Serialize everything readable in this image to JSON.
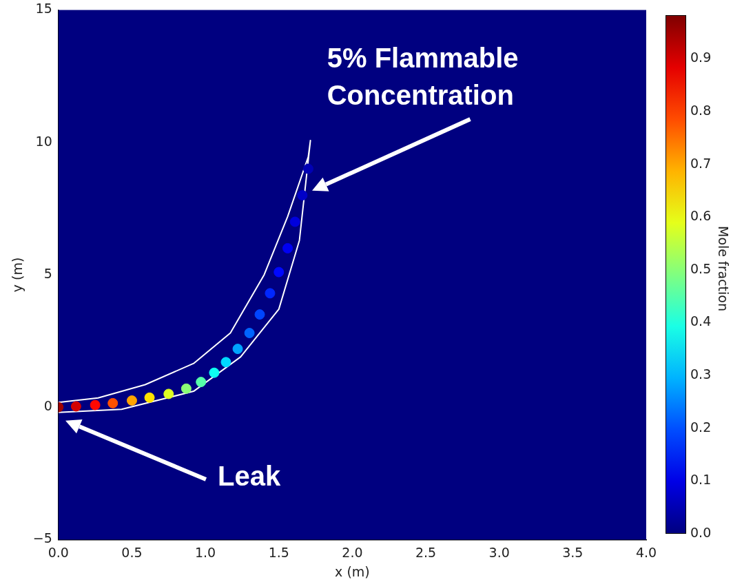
{
  "chart_data": {
    "type": "scatter",
    "xlabel": "x (m)",
    "ylabel": "y (m)",
    "clabel": "Mole fraction",
    "xlim": [
      0,
      4
    ],
    "xticks": [
      {
        "value": 0,
        "label": "0.0"
      },
      0.5,
      {
        "value": 1,
        "label": "1.0"
      },
      1.5,
      {
        "value": 2,
        "label": "2.0"
      },
      2.5,
      {
        "value": 3,
        "label": "3.0"
      },
      3.5,
      {
        "value": 4,
        "label": "4.0"
      }
    ],
    "ylim": [
      -5,
      15
    ],
    "yticks": [
      {
        "value": -5,
        "label": "−5"
      },
      0,
      5,
      10,
      15
    ],
    "clim": [
      0,
      0.98
    ],
    "cticks": [
      {
        "value": 0,
        "label": "0.0"
      },
      0.1,
      0.2,
      0.3,
      0.4,
      0.5,
      0.6,
      0.7,
      0.8,
      0.9
    ],
    "series": [
      {
        "x": [
          0,
          0.12,
          0.25,
          0.37,
          0.5,
          0.62,
          0.75,
          0.87,
          0.97,
          1.06,
          1.14,
          1.22,
          1.3,
          1.37,
          1.44,
          1.5,
          1.56,
          1.61,
          1.66,
          1.7
        ],
        "values": [
          0,
          0.03,
          0.08,
          0.15,
          0.25,
          0.36,
          0.5,
          0.7,
          0.95,
          1.3,
          1.7,
          2.2,
          2.8,
          3.5,
          4.3,
          5.1,
          6.0,
          7.0,
          8.0,
          9.0
        ],
        "cvalues": [
          0.95,
          0.9,
          0.85,
          0.78,
          0.7,
          0.64,
          0.58,
          0.5,
          0.45,
          0.38,
          0.33,
          0.28,
          0.22,
          0.19,
          0.16,
          0.13,
          0.11,
          0.09,
          0.07,
          0.05
        ],
        "colors": [
          "#9f0000",
          "#d30000",
          "#ff0800",
          "#ff5100",
          "#ffa400",
          "#ffe200",
          "#ddff22",
          "#8aff75",
          "#56ffa9",
          "#0dfff2",
          "#00d8ff",
          "#00a4ff",
          "#0065ff",
          "#0046ff",
          "#0027ff",
          "#0008ff",
          "#0000f2",
          "#0000dd",
          "#0000c8",
          "#0000b4"
        ]
      },
      {
        "type": "line",
        "color": "#ffffff",
        "x": [
          0,
          0.27,
          0.59,
          0.92,
          1.17,
          1.4,
          1.56,
          1.7,
          1.715,
          1.64,
          1.5,
          1.24,
          0.92,
          0.43,
          0
        ],
        "values": [
          0.18,
          0.35,
          0.85,
          1.65,
          2.8,
          5.0,
          7.2,
          9.45,
          10.07,
          6.3,
          3.7,
          1.9,
          0.6,
          -0.08,
          -0.2
        ]
      }
    ],
    "annotations": [
      "5% Flammable Concentration",
      "Leak"
    ]
  }
}
